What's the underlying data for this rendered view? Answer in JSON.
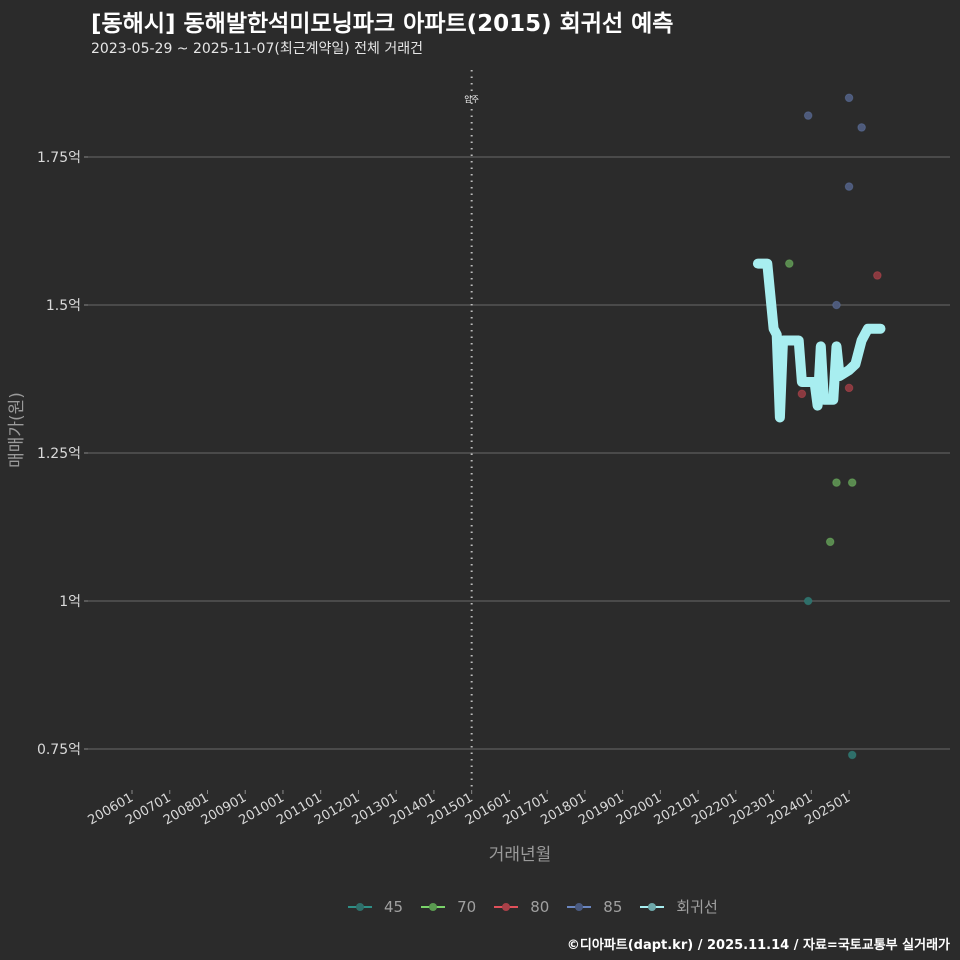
{
  "header": {
    "title": "[동해시] 동해발한석미모닝파크 아파트(2015) 회귀선 예측",
    "subtitle": "2023-05-29 ~ 2025-11-07(최근계약일) 전체 거래건"
  },
  "caption": "©디아파트(dapt.kr) / 2025.11.14 / 자료=국토교통부 실거래가",
  "colors": {
    "background": "#2b2b2b",
    "grid": "#6a6a6a",
    "s45": "#2f8f86",
    "s70": "#7ad36a",
    "s80": "#e0505a",
    "s85": "#6a86c0",
    "regression": "#a8eef0"
  },
  "chart_data": {
    "type": "scatter",
    "title": "[동해시] 동해발한석미모닝파크 아파트(2015) 회귀선 예측",
    "subtitle": "2023-05-29 ~ 2025-11-07(최근계약일) 전체 거래건",
    "xlabel": "거래년월",
    "ylabel": "매매가(원)",
    "x_ticks": [
      "200601",
      "200701",
      "200801",
      "200901",
      "201001",
      "201101",
      "201201",
      "201301",
      "201401",
      "201501",
      "201601",
      "201701",
      "201801",
      "201901",
      "202001",
      "202101",
      "202201",
      "202301",
      "202401",
      "202501"
    ],
    "y_ticks": [
      "0.75억",
      "1억",
      "1.25억",
      "1.5억",
      "1.75억"
    ],
    "y_tick_values": [
      0.75,
      1.0,
      1.25,
      1.5,
      1.75
    ],
    "ylim": [
      0.7,
      1.9
    ],
    "xlim": [
      "2005-01",
      "2027-01"
    ],
    "grid": "horizontal",
    "annotation": {
      "label": "입주",
      "x": "201501",
      "style": "dotted vertical line"
    },
    "legend_position": "bottom",
    "legend": [
      "45",
      "70",
      "80",
      "85",
      "회귀선"
    ],
    "series": [
      {
        "name": "45",
        "color": "#2f8f86",
        "points": [
          {
            "x": "2023-12",
            "y": 1.0
          },
          {
            "x": "2025-02",
            "y": 0.74
          }
        ]
      },
      {
        "name": "70",
        "color": "#7ad36a",
        "points": [
          {
            "x": "2023-06",
            "y": 1.57
          },
          {
            "x": "2024-09",
            "y": 1.2
          },
          {
            "x": "2025-02",
            "y": 1.2
          },
          {
            "x": "2024-07",
            "y": 1.1
          }
        ]
      },
      {
        "name": "80",
        "color": "#e0505a",
        "points": [
          {
            "x": "2023-10",
            "y": 1.35
          },
          {
            "x": "2025-01",
            "y": 1.36
          },
          {
            "x": "2025-10",
            "y": 1.55
          }
        ]
      },
      {
        "name": "85",
        "color": "#6a86c0",
        "points": [
          {
            "x": "2023-12",
            "y": 1.82
          },
          {
            "x": "2025-01",
            "y": 1.85
          },
          {
            "x": "2025-05",
            "y": 1.8
          },
          {
            "x": "2025-01",
            "y": 1.7
          },
          {
            "x": "2024-09",
            "y": 1.5
          }
        ]
      },
      {
        "name": "회귀선",
        "color": "#a8eef0",
        "type": "line",
        "points": [
          {
            "x": "2022-08",
            "y": 1.57
          },
          {
            "x": "2022-11",
            "y": 1.57
          },
          {
            "x": "2023-01",
            "y": 1.46
          },
          {
            "x": "2023-02",
            "y": 1.45
          },
          {
            "x": "2023-03",
            "y": 1.31
          },
          {
            "x": "2023-04",
            "y": 1.44
          },
          {
            "x": "2023-09",
            "y": 1.44
          },
          {
            "x": "2023-10",
            "y": 1.37
          },
          {
            "x": "2024-02",
            "y": 1.37
          },
          {
            "x": "2024-03",
            "y": 1.33
          },
          {
            "x": "2024-04",
            "y": 1.43
          },
          {
            "x": "2024-05",
            "y": 1.34
          },
          {
            "x": "2024-08",
            "y": 1.34
          },
          {
            "x": "2024-09",
            "y": 1.43
          },
          {
            "x": "2024-10",
            "y": 1.38
          },
          {
            "x": "2025-01",
            "y": 1.39
          },
          {
            "x": "2025-03",
            "y": 1.4
          },
          {
            "x": "2025-05",
            "y": 1.44
          },
          {
            "x": "2025-07",
            "y": 1.46
          },
          {
            "x": "2025-11",
            "y": 1.46
          }
        ]
      }
    ]
  }
}
